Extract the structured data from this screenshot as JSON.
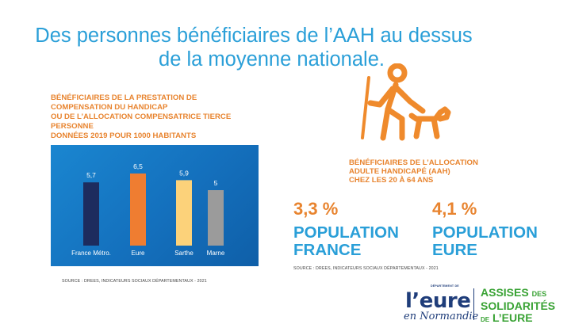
{
  "title": {
    "line1": "Des personnes bénéficiaires de l’AAH au dessus",
    "line2": "de la moyenne nationale."
  },
  "chart_heading": {
    "line1": "Bénéficiaires de la prestation de",
    "line2": "compensation du handicap",
    "line3": "ou de l’allocation compensatrice tierce",
    "line4": "personne",
    "line5": "Données 2019 pour 1000 habitants"
  },
  "chart_data": {
    "type": "bar",
    "categories": [
      "France Métro.",
      "Eure",
      "Sarthe",
      "Marne"
    ],
    "values": [
      5.7,
      6.5,
      5.9,
      5
    ],
    "value_labels": [
      "5,7",
      "6,5",
      "5,9",
      "5"
    ],
    "colors": [
      "#1d2c5e",
      "#ef7d31",
      "#fcd27a",
      "#9b9b9b"
    ],
    "title": "",
    "xlabel": "",
    "ylabel": "",
    "ylim": [
      0,
      8
    ]
  },
  "source_left": "SOURCE : DREES, INDICATEURS SOCIAUX DÉPARTEMENTAUX - 2021",
  "source_right": "SOURCE : DREES, INDICATEURS SOCIAUX DÉPARTEMENTAUX - 2021",
  "aah_icon": "person-with-guide-dog-icon",
  "aah_heading": {
    "line1": "Bénéficiaires de l’allocation",
    "line2": "adulte handicapé (AAH)",
    "line3": "chez les 20 à 64 ans"
  },
  "stats": {
    "france": {
      "pct": "3,3 %",
      "label1": "POPULATION",
      "label2": "FRANCE"
    },
    "eure": {
      "pct": "4,1 %",
      "label1": "POPULATION",
      "label2": "EURE"
    }
  },
  "logo_eure": {
    "small": "DÉPARTEMENT DE",
    "big": "l’eure",
    "script": "en Normandie"
  },
  "logo_assises": {
    "l1": "ASSISES",
    "l1_small": "DES",
    "l2": "SOLIDARITÉS",
    "l3_small": "DE",
    "l3": "L’EURE"
  },
  "colors": {
    "title_blue": "#2a9fd8",
    "accent_orange": "#e8842f",
    "chart_bg": "#1470bd",
    "logo_navy": "#1f3d7a",
    "logo_green": "#3aa335"
  }
}
